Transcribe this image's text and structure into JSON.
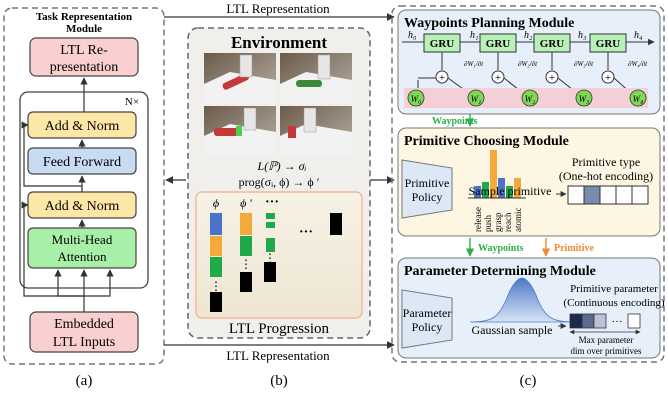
{
  "panel_a": {
    "title_line1": "Task Representation",
    "title_line2": "Module",
    "top_block_line1": "LTL Re-",
    "top_block_line2": "presentation",
    "repeat_label": "N×",
    "add_norm_top": "Add & Norm",
    "feed_forward": "Feed Forward",
    "add_norm_bottom": "Add & Norm",
    "attention_line1": "Multi-Head",
    "attention_line2": "Attention",
    "input_line1": "Embedded",
    "input_line2": "LTL Inputs",
    "caption": "(a)"
  },
  "panel_b": {
    "title": "Environment",
    "eq1": "L(ℙ) → σᵢ",
    "eq2": "prog(σᵢ, ϕ) → ϕ ′",
    "phi": "ϕ",
    "phi_prime": "ϕ ′",
    "ellipsis_dots": "···",
    "ellipsis_vertical": "⋮",
    "footer": "LTL Progression",
    "caption": "(b)"
  },
  "arrows": {
    "top_label": "LTL Representation",
    "bottom_label": "LTL Representation"
  },
  "panel_c": {
    "caption": "(c)",
    "waypoints_module": {
      "title": "Waypoints Planning Module",
      "gru_label": "GRU",
      "hidden_states": [
        "h₀",
        "h₁",
        "h₂",
        "h₃",
        "h₄"
      ],
      "waypoints": [
        "W₀",
        "W₁",
        "W₂",
        "W₃",
        "W₄"
      ],
      "derivatives": [
        "∂W₁/∂t",
        "∂W₂/∂t",
        "∂W₃/∂t",
        "∂W₄/∂t"
      ],
      "plus": "+",
      "output_label": "Waypoints"
    },
    "primitive_module": {
      "title": "Primitive Choosing Module",
      "policy_line1": "Primitive",
      "policy_line2": "Policy",
      "sample_label": "Sample primitive",
      "primitives": [
        "release",
        "push",
        "grasp",
        "reach",
        "atomic"
      ],
      "type_line1": "Primitive type",
      "type_line2": "(One-hot encoding)"
    },
    "links": {
      "waypoints": "Waypoints",
      "primitive": "Primitive"
    },
    "parameter_module": {
      "title": "Parameter Determining Module",
      "policy_line1": "Parameter",
      "policy_line2": "Policy",
      "sample_label": "Gaussian sample",
      "param_line1": "Primitive parameter",
      "param_line2": "(Continuous encoding)",
      "ellipsis": "···",
      "max_line1": "Max parameter",
      "max_line2": "dim over primitives"
    }
  },
  "colors": {
    "pink_block": "#f9cfd0",
    "yellow_block": "#fde7a6",
    "blue_block": "#c9daf3",
    "green_block": "#a8f0a8",
    "module_bg": "#e6effa",
    "primitive_bg": "#fdf6e3",
    "gru_fill": "#b8f0b8",
    "waypoint_node": "#7ed957",
    "accent_orange": "#f08a2c",
    "accent_green": "#2fb04a",
    "bar_blue": "#4a74c9",
    "bar_orange": "#f4a93b",
    "bar_green": "#1faa4a"
  }
}
